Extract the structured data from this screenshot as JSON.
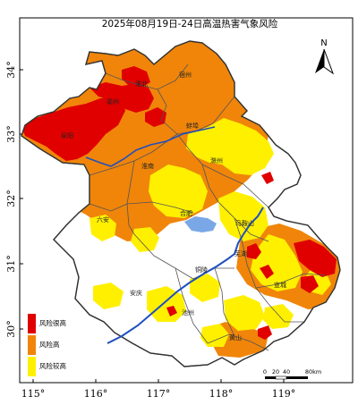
{
  "map": {
    "title": "2025年08月19日-24日高温热害气象风险",
    "north_label": "N",
    "x_ticks": [
      "115°",
      "116°",
      "117°",
      "118°",
      "119°"
    ],
    "y_ticks": [
      "34°",
      "33°",
      "32°",
      "31°",
      "30°"
    ],
    "cities": [
      "宿州",
      "淮北",
      "亳州",
      "阜阳",
      "蚌埠",
      "淮南",
      "滁州",
      "六安",
      "合肥",
      "马鞍山",
      "芜湖",
      "宣城",
      "铜陵",
      "安庆",
      "池州",
      "黄山"
    ],
    "legend": [
      {
        "label": "风险很高",
        "color": "#e00000"
      },
      {
        "label": "风险高",
        "color": "#f0850a"
      },
      {
        "label": "风险较高",
        "color": "#fff000"
      }
    ],
    "scale": {
      "labels": [
        "0",
        "20",
        "40",
        "80km"
      ]
    },
    "colors": {
      "very_high": "#e00000",
      "high": "#f0850a",
      "mid": "#fff000",
      "river": "#1f4fbf",
      "lake": "#7aa8e6",
      "border": "#555555"
    }
  }
}
